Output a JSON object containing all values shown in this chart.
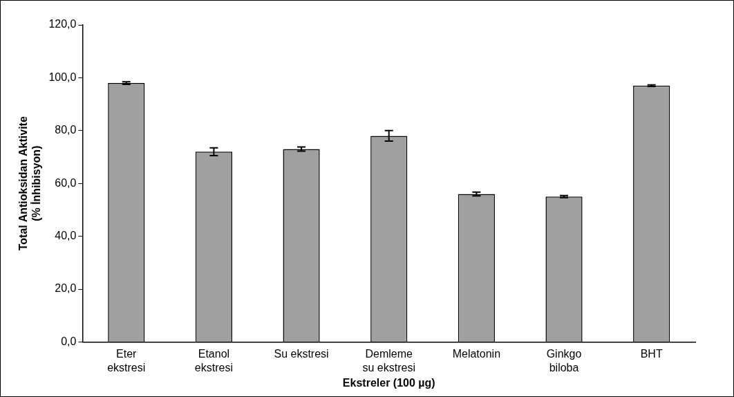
{
  "chart_data": {
    "type": "bar",
    "xlabel": "Ekstreler (100 µg)",
    "ylabel": "Total Antioksidan Aktivite\n(% İnhibisyon)",
    "categories": [
      "Eter\nekstresi",
      "Etanol\nekstresi",
      "Su ekstresi",
      "Demleme\nsu ekstresi",
      "Melatonin",
      "Ginkgo\nbiloba",
      "BHT"
    ],
    "values": [
      98.0,
      72.0,
      73.0,
      78.0,
      56.0,
      55.0,
      97.0
    ],
    "errors": [
      0.5,
      1.5,
      0.8,
      2.0,
      0.7,
      0.4,
      0.3
    ],
    "color": "#a0a0a0",
    "ylim": [
      0,
      120
    ],
    "yticks": [
      {
        "value": 0,
        "label": "0,0"
      },
      {
        "value": 20,
        "label": "20,0"
      },
      {
        "value": 40,
        "label": "40,0"
      },
      {
        "value": 60,
        "label": "60,0"
      },
      {
        "value": 80,
        "label": "80,0"
      },
      {
        "value": 100,
        "label": "100,0"
      },
      {
        "value": 120,
        "label": "120,0"
      }
    ],
    "grid": false,
    "legend": false
  }
}
